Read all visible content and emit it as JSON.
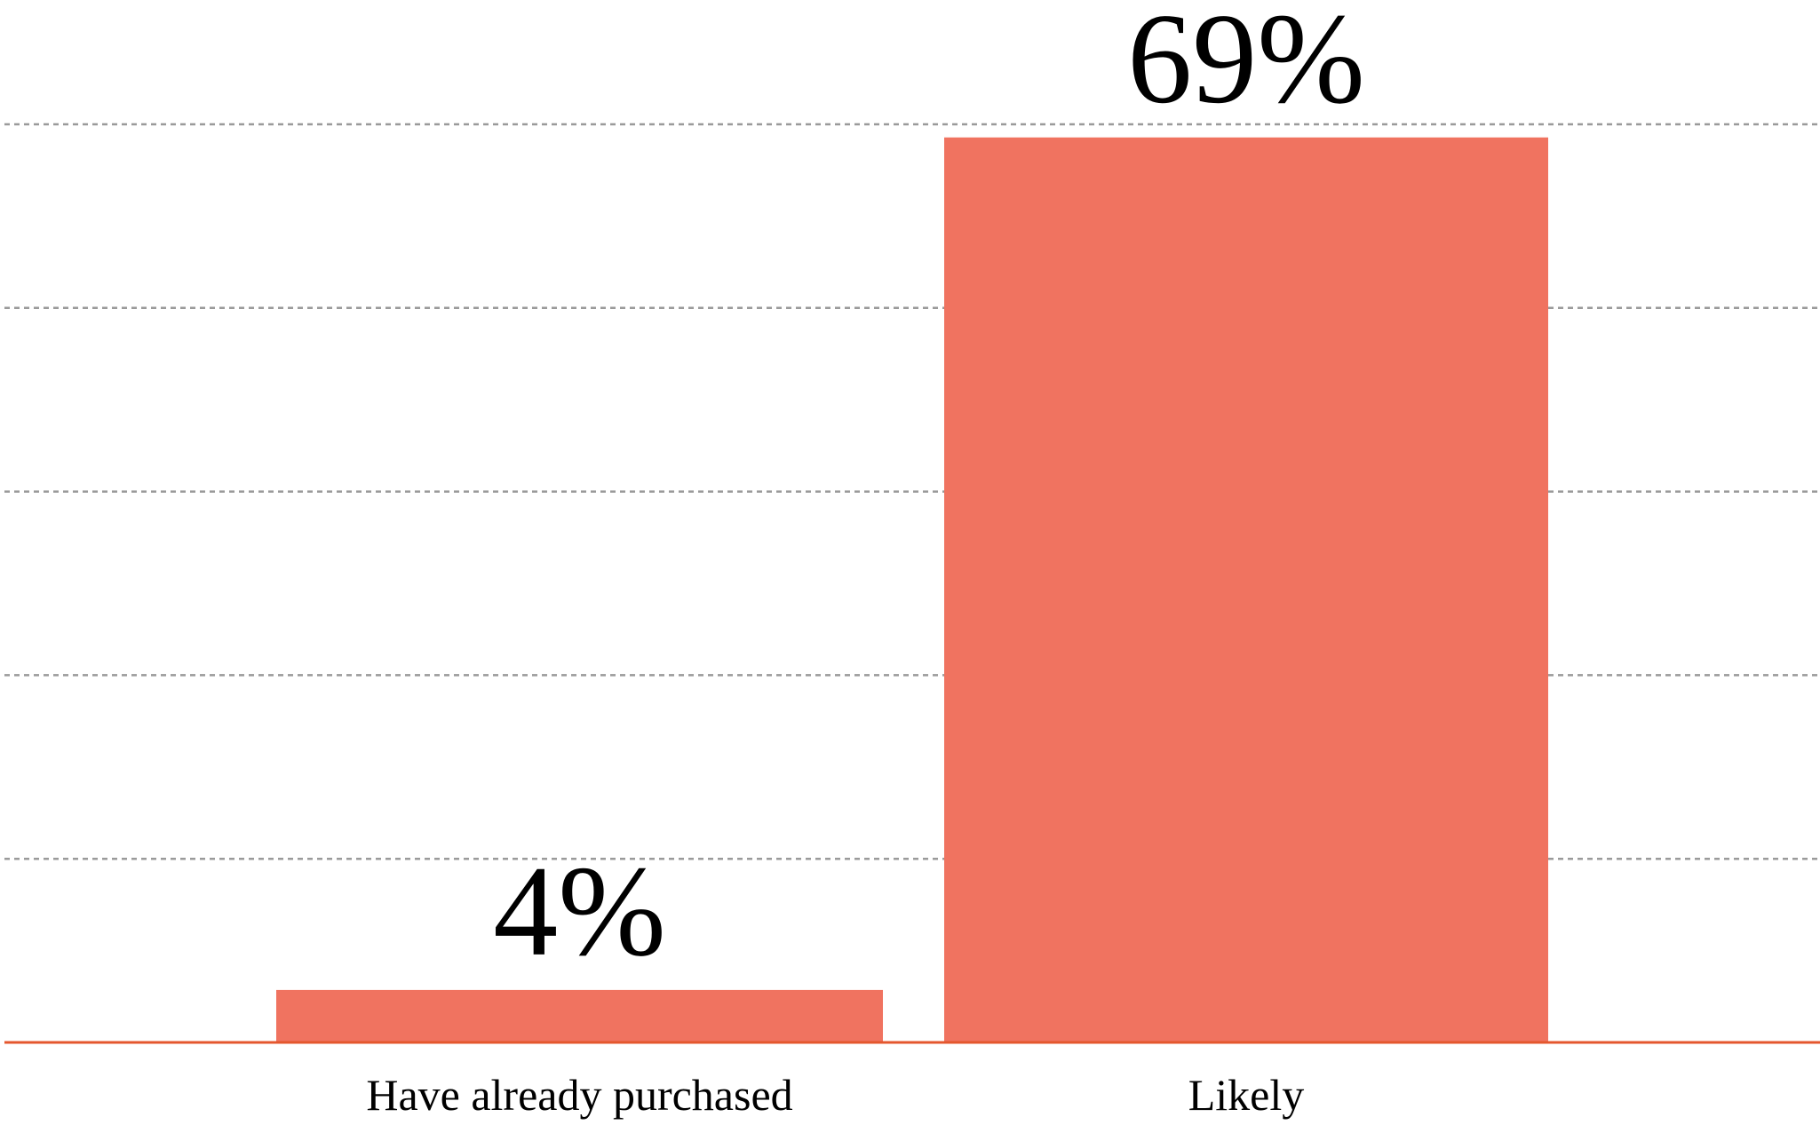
{
  "chart_data": {
    "type": "bar",
    "categories": [
      "Have already purchased",
      "Likely"
    ],
    "values": [
      4,
      69
    ],
    "value_labels": [
      "4%",
      "69%"
    ],
    "unit": "%",
    "ylim": [
      0,
      70
    ],
    "gridlines": [
      14,
      28,
      42,
      56,
      70
    ],
    "grid": true,
    "bar_color": "#f07360",
    "baseline_color": "#e4572e",
    "grid_color": "#9a9a9a",
    "title": "",
    "xlabel": "",
    "ylabel": ""
  }
}
